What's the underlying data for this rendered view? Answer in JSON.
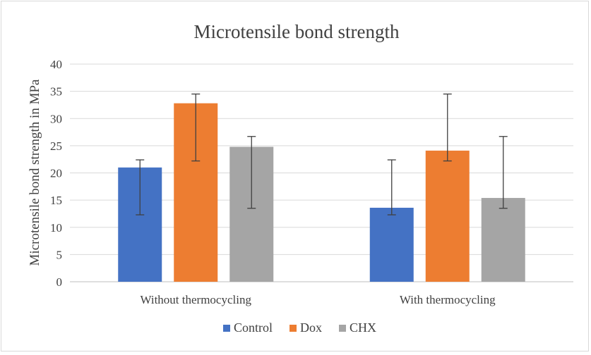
{
  "chart_data": {
    "type": "bar",
    "title": "Microtensile  bond strength",
    "ylabel": "Microtensile bond strength in MPa",
    "xlabel": "",
    "categories": [
      "Without thermocycling",
      "With thermocycling"
    ],
    "ylim": [
      0,
      40
    ],
    "yticks": [
      0,
      5,
      10,
      15,
      20,
      25,
      30,
      35,
      40
    ],
    "grid": true,
    "legend_position": "bottom",
    "series": [
      {
        "name": "Control",
        "color": "#4472c4",
        "values": [
          21.0,
          13.6
        ],
        "error_low": [
          12.3,
          12.3
        ],
        "error_high": [
          22.4,
          22.4
        ]
      },
      {
        "name": "Dox",
        "color": "#ed7d31",
        "values": [
          32.8,
          24.1
        ],
        "error_low": [
          22.2,
          22.2
        ],
        "error_high": [
          34.5,
          34.5
        ]
      },
      {
        "name": "CHX",
        "color": "#a5a5a5",
        "values": [
          24.8,
          15.4
        ],
        "error_low": [
          13.5,
          13.5
        ],
        "error_high": [
          26.7,
          26.7
        ]
      }
    ]
  }
}
